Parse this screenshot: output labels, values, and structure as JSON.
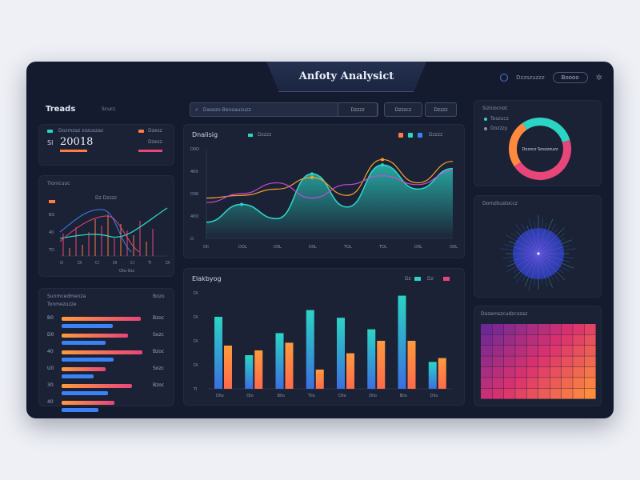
{
  "header": {
    "title": "Anfoty Analysict",
    "clock_label": "Dzzszuzzz",
    "pill_label": "Boooo"
  },
  "left": {
    "trends_title": "Treads",
    "trends_meta": "Scucc",
    "kpi_label_top": "Dozmzaz zozuszaz",
    "kpi_prefix": "Sl",
    "kpi_value": "20018",
    "kpi_chips": [
      "Dzesz",
      "Dzesz"
    ],
    "mini_chart_title": "Tionicuuc",
    "mini_chart_legend": "Dz Dzzzz",
    "mini_ticks_y": [
      "BO",
      "40",
      "TO"
    ],
    "mini_ticks_x": [
      "O",
      "Ol",
      "Cl",
      "Ol",
      "Cl",
      "Tl",
      "Ol"
    ],
    "mini_chart_footer": "Oto 0zz",
    "bars_title": "Sunmcedmenza",
    "bars_subtitle": "Tonmezuzze",
    "bars_meta": "Bozo",
    "bars_labels": [
      "B0",
      "D0",
      "40",
      "U0",
      "30",
      "40"
    ],
    "bars_values": [
      0.9,
      0.75,
      0.92,
      0.5,
      0.8,
      0.6
    ],
    "bars_right": [
      "Bzoc",
      "Sozc",
      "Bzoc",
      "Sozc",
      "Bzoc"
    ]
  },
  "toolbar": {
    "search_text": "Daoszo Benoauzuzz",
    "button1": "Dzzzz",
    "button2": "Dzzzcz",
    "button3": "Dzzzz"
  },
  "center": {
    "area_title": "Dnalisig",
    "area_legend": "Dzzzz",
    "area_legend_right": "Dzzzz",
    "bar_chart_title": "Elakbyog",
    "bar_chart_legend1": "Dz",
    "bar_chart_legend2": "Dz"
  },
  "right": {
    "donut_title": "Sizniocnot",
    "donut_legend": [
      "Toszucz",
      "Dozzzy"
    ],
    "donut_center": "Dozocz Sosozzuzz",
    "radial_title": "Domzbustoccz",
    "heatmap_title": "Dozemszcudzcozaz"
  },
  "chart_data": [
    {
      "type": "area",
      "title": "Dnalisig",
      "x": [
        "Oll",
        "DOL",
        "D0L",
        "D0L",
        "TOL",
        "TOL",
        "D0L",
        "O0L"
      ],
      "yticks": [
        "D0O",
        "400",
        "D00",
        "40O",
        "O"
      ],
      "series": [
        {
          "values": [
            0.18,
            0.38,
            0.22,
            0.72,
            0.35,
            0.82,
            0.55,
            0.78
          ],
          "color": "#2bd4c4"
        },
        {
          "values": [
            0.45,
            0.48,
            0.55,
            0.68,
            0.48,
            0.88,
            0.62,
            0.86
          ],
          "color": "#f5a02a"
        },
        {
          "values": [
            0.4,
            0.5,
            0.62,
            0.45,
            0.6,
            0.7,
            0.6,
            0.75
          ],
          "color": "#c74bd4"
        }
      ]
    },
    {
      "type": "bar",
      "title": "Elakbyog",
      "x": [
        "Dlio",
        "Olo",
        "Blio",
        "Tlio",
        "Dlio",
        "Dlio",
        "Blio",
        "Dlio"
      ],
      "yticks": [
        "Dl",
        "Dl",
        "Dl",
        "Dl",
        "Tl"
      ],
      "series": [
        {
          "values": [
            0.75,
            0.35,
            0.58,
            0.82,
            0.74,
            0.62,
            0.97,
            0.28
          ],
          "color": "#2fa8e0"
        },
        {
          "values": [
            0.45,
            0.4,
            0.48,
            0.2,
            0.37,
            0.5,
            0.5,
            0.32
          ],
          "color": "#ff7a45"
        }
      ]
    },
    {
      "type": "pie",
      "title": "Sizniocnot",
      "values": [
        0.3,
        0.45,
        0.25
      ],
      "colors": [
        "#2bd4c4",
        "#e8457a",
        "#ff8a3d"
      ]
    }
  ]
}
